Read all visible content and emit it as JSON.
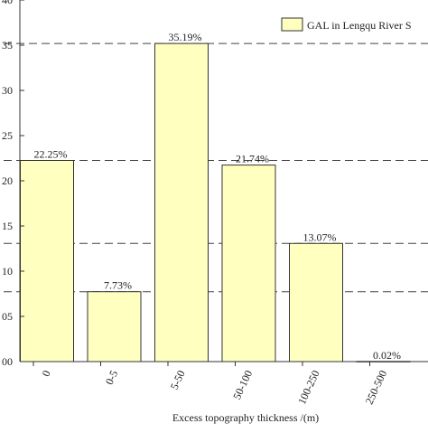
{
  "chart_data": {
    "type": "bar",
    "categories": [
      "0",
      "0-5",
      "5-50",
      "50-100",
      "100-250",
      "250-500"
    ],
    "values": [
      22.25,
      7.73,
      35.19,
      21.74,
      13.07,
      0.02
    ],
    "value_labels": [
      "22.25%",
      "7.73%",
      "35.19%",
      "21.74%",
      "13.07%",
      "0.02%"
    ],
    "xlabel": "Excess topography thickness /(m)",
    "ylabel": "",
    "ylim": [
      0,
      40
    ],
    "y_tick_labels": [
      {
        "value": 0,
        "label": "00"
      },
      {
        "value": 5,
        "label": "05"
      },
      {
        "value": 10,
        "label": "10"
      },
      {
        "value": 15,
        "label": "15"
      },
      {
        "value": 20,
        "label": "20"
      },
      {
        "value": 25,
        "label": "25"
      },
      {
        "value": 30,
        "label": "30"
      },
      {
        "value": 35,
        "label": "35"
      },
      {
        "value": 40,
        "label": "40"
      }
    ],
    "reference_lines": [
      7.73,
      13.07,
      22.25,
      35.19
    ],
    "legend": {
      "label": "GAL in Lengqu River S",
      "position": "top-right"
    },
    "bar_fill": "#ffffc0",
    "bar_stroke": "#333333",
    "grid": false
  }
}
